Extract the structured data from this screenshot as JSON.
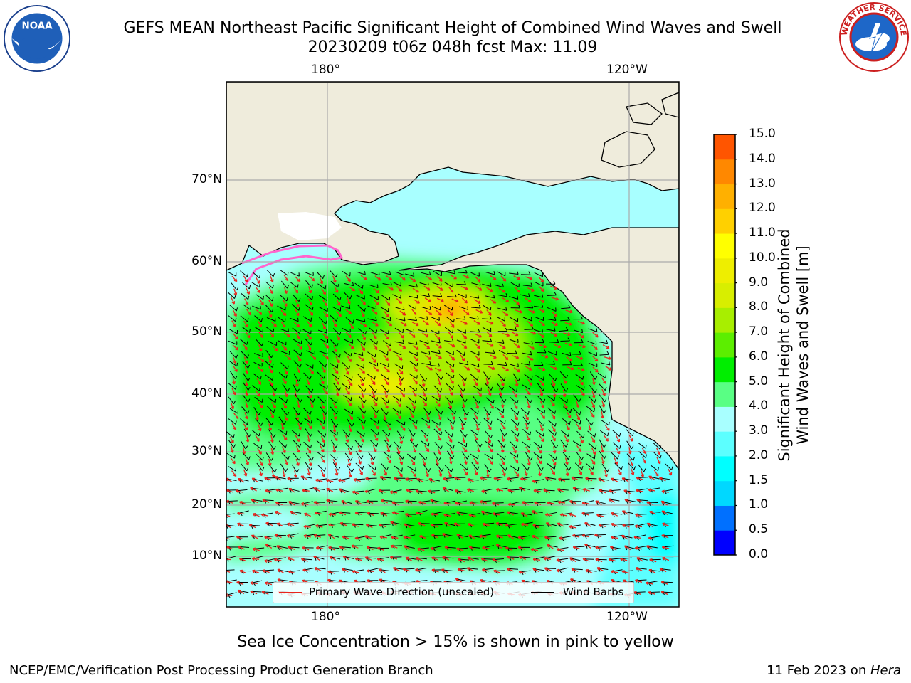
{
  "header": {
    "title": "GEFS MEAN Northeast Pacific Significant Height of Combined Wind Waves and Swell",
    "subtitle": "20230209 t06z 048h fcst   Max: 11.09"
  },
  "logos": {
    "left": {
      "icon": "noaa-logo-icon",
      "text": "NOAA"
    },
    "right": {
      "icon": "national-weather-service-logo-icon",
      "text": "NATIONAL WEATHER SERVICE"
    }
  },
  "map": {
    "lon_labels_top": [
      "180°",
      "120°W"
    ],
    "lon_labels_bottom": [
      "180°",
      "120°W"
    ],
    "lat_labels": [
      "70°N",
      "60°N",
      "50°N",
      "40°N",
      "30°N",
      "20°N",
      "10°N"
    ],
    "colors": {
      "land": "#efecdc",
      "coast": "#000000",
      "wave_arrows": "#e8241c",
      "wind_barbs": "#000000",
      "grid": "#aaaaaa",
      "sea_ice": "#ff66cc"
    }
  },
  "colorbar": {
    "label_line1": "Significant Height of Combined",
    "label_line2": "Wind Waves and Swell [m]",
    "ticks": [
      "15.0",
      "14.0",
      "13.0",
      "12.0",
      "11.0",
      "10.0",
      "9.0",
      "8.0",
      "7.0",
      "6.0",
      "5.0",
      "4.0",
      "3.0",
      "2.0",
      "1.5",
      "1.0",
      "0.5",
      "0.0"
    ],
    "colors": [
      "#0000ff",
      "#0070ff",
      "#00d8ff",
      "#00ffff",
      "#5cffff",
      "#a8ffff",
      "#59ff84",
      "#00ee00",
      "#5cee00",
      "#a8ee00",
      "#d8ee00",
      "#eeee00",
      "#ffff00",
      "#ffd000",
      "#ffb000",
      "#ff8800",
      "#ff5500",
      "#ff2200",
      "#ff0000"
    ]
  },
  "legend": {
    "wave_label": "Primary Wave Direction (unscaled)",
    "wind_label": "Wind Barbs"
  },
  "note": "Sea Ice Concentration > 15% is shown in pink to yellow",
  "footer": {
    "left": "NCEP/EMC/Verification Post Processing Product Generation Branch",
    "right_prefix": "11 Feb 2023 on ",
    "right_machine": "Hera"
  }
}
